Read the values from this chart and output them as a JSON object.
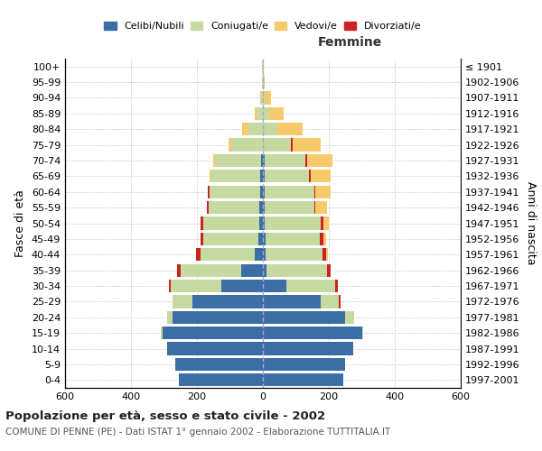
{
  "age_groups": [
    "0-4",
    "5-9",
    "10-14",
    "15-19",
    "20-24",
    "25-29",
    "30-34",
    "35-39",
    "40-44",
    "45-49",
    "50-54",
    "55-59",
    "60-64",
    "65-69",
    "70-74",
    "75-79",
    "80-84",
    "85-89",
    "90-94",
    "95-99",
    "100+"
  ],
  "birth_years": [
    "1997-2001",
    "1992-1996",
    "1987-1991",
    "1982-1986",
    "1977-1981",
    "1972-1976",
    "1967-1971",
    "1962-1966",
    "1957-1961",
    "1952-1956",
    "1947-1951",
    "1942-1946",
    "1937-1941",
    "1932-1936",
    "1927-1931",
    "1922-1926",
    "1917-1921",
    "1912-1916",
    "1907-1911",
    "1902-1906",
    "≤ 1901"
  ],
  "male": {
    "celibi": [
      255,
      265,
      290,
      305,
      275,
      215,
      125,
      65,
      25,
      15,
      10,
      10,
      8,
      8,
      5,
      0,
      0,
      0,
      0,
      0,
      0
    ],
    "coniugati": [
      0,
      0,
      0,
      5,
      15,
      60,
      155,
      185,
      165,
      165,
      170,
      155,
      155,
      150,
      140,
      95,
      45,
      18,
      5,
      2,
      2
    ],
    "vedovi": [
      0,
      0,
      0,
      0,
      0,
      0,
      0,
      0,
      0,
      0,
      0,
      0,
      0,
      3,
      6,
      8,
      18,
      6,
      3,
      0,
      0
    ],
    "divorziati": [
      0,
      0,
      0,
      0,
      0,
      0,
      5,
      10,
      12,
      10,
      8,
      5,
      5,
      0,
      0,
      0,
      0,
      0,
      0,
      0,
      0
    ]
  },
  "female": {
    "nubili": [
      245,
      250,
      275,
      300,
      250,
      175,
      70,
      12,
      8,
      8,
      5,
      5,
      5,
      5,
      5,
      0,
      0,
      0,
      0,
      0,
      0
    ],
    "coniugate": [
      0,
      0,
      0,
      5,
      28,
      55,
      148,
      182,
      172,
      165,
      170,
      150,
      150,
      135,
      125,
      85,
      45,
      18,
      6,
      2,
      0
    ],
    "vedove": [
      0,
      0,
      0,
      0,
      0,
      0,
      0,
      0,
      5,
      8,
      18,
      35,
      45,
      60,
      75,
      85,
      75,
      45,
      18,
      4,
      2
    ],
    "divorziate": [
      0,
      0,
      0,
      0,
      0,
      5,
      10,
      12,
      12,
      10,
      8,
      5,
      5,
      5,
      5,
      5,
      0,
      0,
      0,
      0,
      0
    ]
  },
  "colors": {
    "celibi_nubili": "#3a6ea5",
    "coniugati": "#c5d9a0",
    "vedovi": "#f6c96b",
    "divorziati": "#cc2222"
  },
  "xlim": 600,
  "title": "Popolazione per età, sesso e stato civile - 2002",
  "subtitle": "COMUNE DI PENNE (PE) - Dati ISTAT 1° gennaio 2002 - Elaborazione TUTTITALIA.IT",
  "ylabel_left": "Fasce di età",
  "ylabel_right": "Anni di nascita",
  "xlabel_right": "Femmine",
  "legend_labels": [
    "Celibi/Nubili",
    "Coniugati/e",
    "Vedovi/e",
    "Divorziati/e"
  ],
  "background_color": "#ffffff",
  "grid_color": "#cccccc"
}
